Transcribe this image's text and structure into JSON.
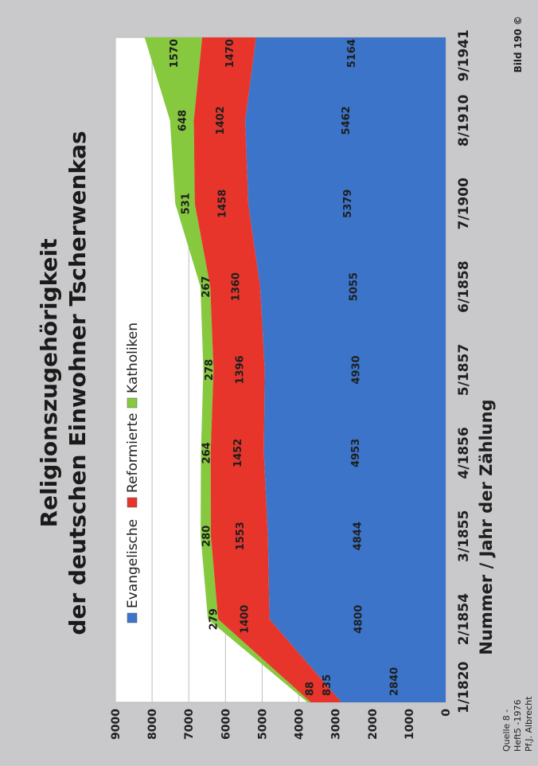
{
  "source_note": [
    "Quelle 8 -",
    "Heft5 -1976",
    "Pf.J. Albrecht"
  ],
  "bild_label": "Bild 190 ©",
  "chart_data": {
    "type": "area",
    "stacked": true,
    "title": [
      "Religionszugehörigkeit",
      "der deutschen Einwohner Tscherwenkas"
    ],
    "xlabel": "Nummer / Jahr der Zählung",
    "ylabel": "",
    "categories": [
      "1/1820",
      "2/1854",
      "3/1855",
      "4/1856",
      "5/1857",
      "6/1858",
      "7/1900",
      "8/1910",
      "9/1941"
    ],
    "ylim": [
      0,
      9000
    ],
    "yticks": [
      0,
      1000,
      2000,
      3000,
      4000,
      5000,
      6000,
      7000,
      8000,
      9000
    ],
    "legend_position": "top",
    "grid": true,
    "series": [
      {
        "name": "Evangelische",
        "color": "#3b74c9",
        "values": [
          2840,
          4800,
          4844,
          4953,
          4930,
          5055,
          5379,
          5462,
          5164
        ]
      },
      {
        "name": "Reformierte",
        "color": "#e8352c",
        "values": [
          835,
          1400,
          1553,
          1452,
          1396,
          1360,
          1458,
          1402,
          1470
        ]
      },
      {
        "name": "Katholiken",
        "color": "#86c93f",
        "values": [
          88,
          279,
          280,
          264,
          278,
          267,
          531,
          648,
          1570
        ]
      }
    ]
  }
}
